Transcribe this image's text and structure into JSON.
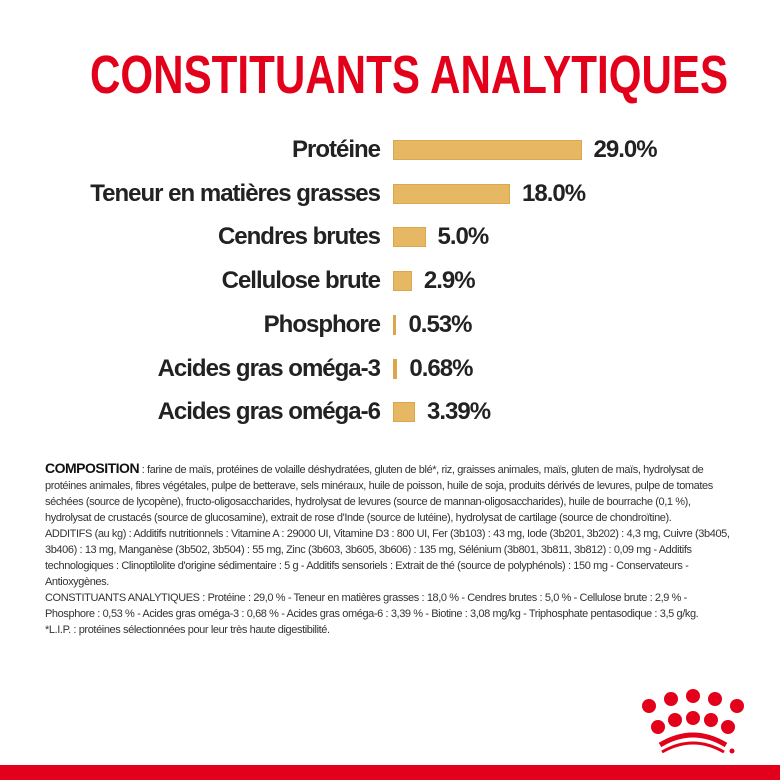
{
  "title": "CONSTITUANTS ANALYTIQUES",
  "colors": {
    "brand_red": "#e2001a",
    "bar": "#e6b864"
  },
  "chart_data": {
    "type": "bar",
    "orientation": "horizontal",
    "categories": [
      "Protéine",
      "Teneur en matières grasses",
      "Cendres brutes",
      "Cellulose brute",
      "Phosphore",
      "Acides gras oméga-3",
      "Acides gras oméga-6"
    ],
    "values": [
      29.0,
      18.0,
      5.0,
      2.9,
      0.53,
      0.68,
      3.39
    ],
    "value_labels": [
      "29.0%",
      "18.0%",
      "5.0%",
      "2.9%",
      "0.53%",
      "0.68%",
      "3.39%"
    ],
    "unit": "%"
  },
  "composition": {
    "heading": "COMPOSITION",
    "text": " : farine de maïs, protéines de volaille déshydratées, gluten de blé*, riz, graisses animales, maïs, gluten de maïs, hydrolysat de protéines animales, fibres végétales, pulpe de betterave, sels minéraux, huile de poisson, huile de soja, produits dérivés de levures, pulpe de tomates séchées (source de lycopène), fructo-oligosaccharides, hydrolysat de levures (source de mannan-oligosaccharides), huile de bourrache (0,1 %), hydrolysat de crustacés (source de glucosamine), extrait de rose d'Inde (source de lutéine), hydrolysat de cartilage (source de chondroïtine).",
    "additifs": "ADDITIFS (au kg) : Additifs nutritionnels : Vitamine A : 29000 UI, Vitamine D3 : 800 UI, Fer (3b103) : 43 mg, Iode (3b201, 3b202) : 4,3 mg, Cuivre (3b405, 3b406) : 13 mg, Manganèse (3b502, 3b504) : 55 mg, Zinc (3b603, 3b605, 3b606) : 135 mg, Sélénium (3b801, 3b811, 3b812) : 0,09 mg - Additifs technologiques : Clinoptilolite d'origine sédimentaire : 5 g - Additifs sensoriels : Extrait de thé (source de polyphénols) : 150 mg - Conservateurs - Antioxygènes.",
    "constituants": "CONSTITUANTS ANALYTIQUES : Protéine : 29,0 % - Teneur en matières grasses : 18,0 % - Cendres brutes : 5,0 % - Cellulose brute : 2,9 % - Phosphore : 0,53 % - Acides gras oméga-3 : 0,68 % - Acides gras oméga-6 : 3,39 % - Biotine : 3,08 mg/kg - Triphosphate pentasodique : 3,5 g/kg.",
    "footnote": "*L.I.P. : protéines sélectionnées pour leur très haute digestibilité."
  },
  "logo": {
    "brand": "Royal Canin",
    "icon": "crown-icon"
  }
}
